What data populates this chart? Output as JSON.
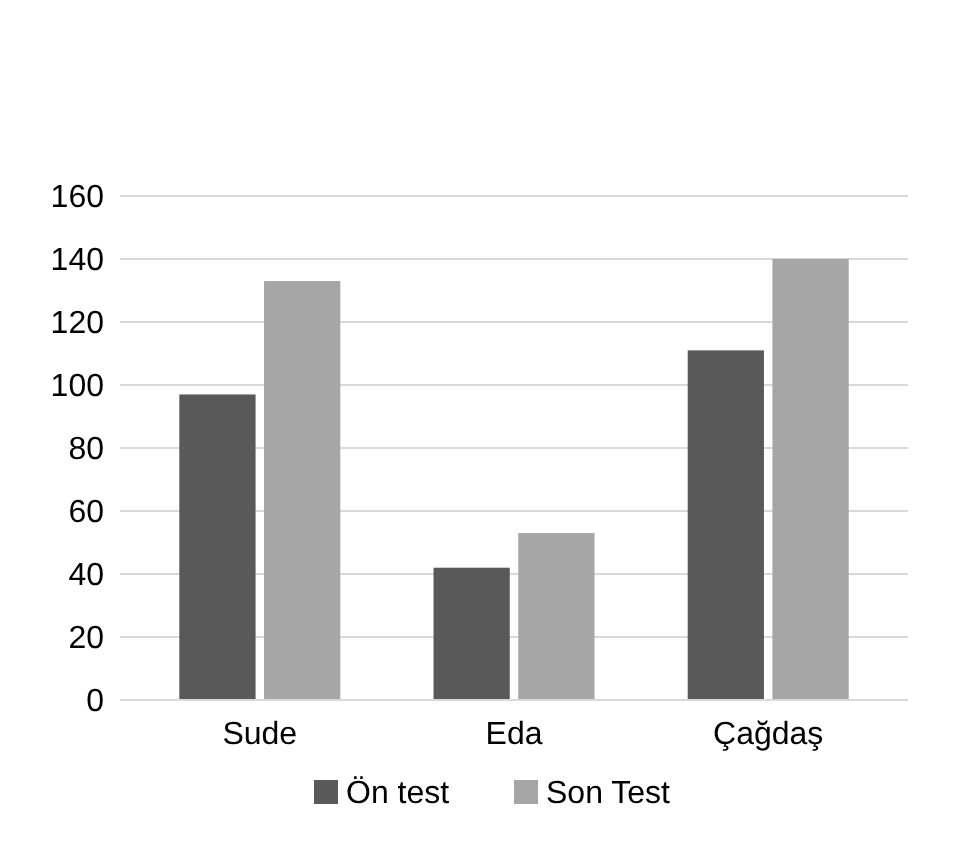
{
  "chart_data": {
    "type": "bar",
    "categories": [
      "Sude",
      "Eda",
      "Çağdaş"
    ],
    "series": [
      {
        "name": "Ön test",
        "color": "#595959",
        "values": [
          97,
          42,
          111
        ]
      },
      {
        "name": "Son Test",
        "color": "#a6a6a6",
        "values": [
          133,
          53,
          140
        ]
      }
    ],
    "ylim": [
      0,
      160
    ],
    "yticks": [
      0,
      20,
      40,
      60,
      80,
      100,
      120,
      140,
      160
    ],
    "grid": "y",
    "legend": "bottom"
  }
}
